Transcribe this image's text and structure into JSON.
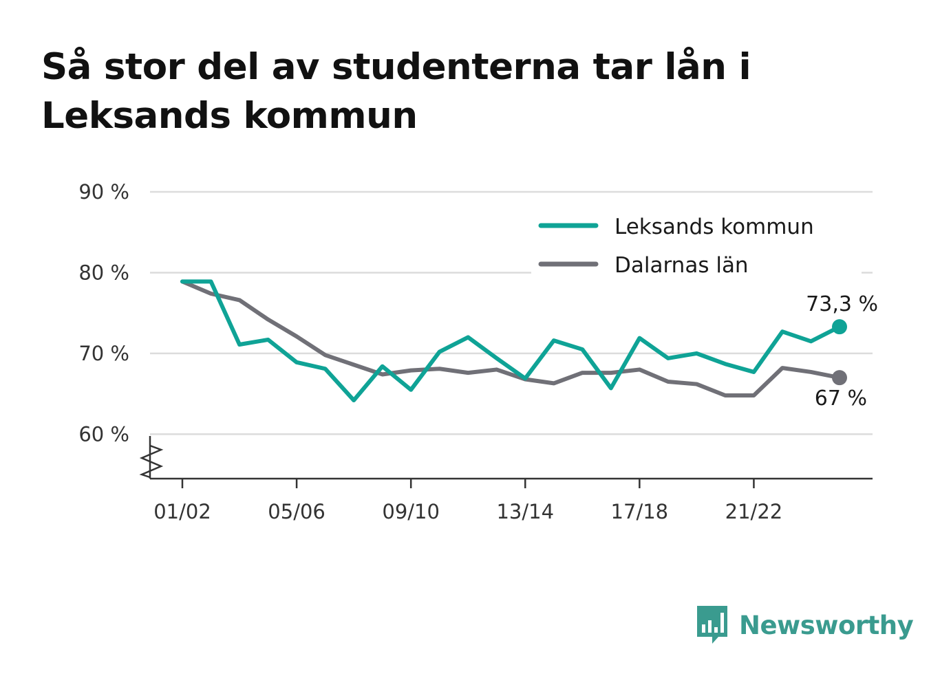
{
  "title": "Så stor del av studenterna tar lån i Leksands kommun",
  "brand": {
    "name": "Newsworthy",
    "color": "#3a9b8f",
    "icon": "bar-chart-speech-bubble-icon"
  },
  "chart_data": {
    "type": "line",
    "categories": [
      "01/02",
      "02/03",
      "03/04",
      "04/05",
      "05/06",
      "06/07",
      "07/08",
      "08/09",
      "09/10",
      "10/11",
      "11/12",
      "12/13",
      "13/14",
      "14/15",
      "15/16",
      "16/17",
      "17/18",
      "18/19",
      "19/20",
      "20/21",
      "21/22",
      "22/23",
      "23/24",
      "24/25"
    ],
    "tick_labels": [
      "01/02",
      "05/06",
      "09/10",
      "13/14",
      "17/18",
      "21/22"
    ],
    "y_ticks": [
      {
        "value": 60,
        "label": "60 %"
      },
      {
        "value": 70,
        "label": "70 %"
      },
      {
        "value": 80,
        "label": "80 %"
      },
      {
        "value": 90,
        "label": "90 %"
      }
    ],
    "ylim": [
      54.5,
      90
    ],
    "y_axis_break": true,
    "grid": true,
    "legend_position": "top-right",
    "series": [
      {
        "name": "Leksands kommun",
        "color": "#0fa396",
        "values": [
          78.9,
          78.9,
          71.1,
          71.7,
          68.9,
          68.1,
          64.2,
          68.4,
          65.5,
          70.2,
          72.0,
          69.4,
          66.9,
          71.6,
          70.5,
          65.7,
          71.9,
          69.4,
          70.0,
          68.7,
          67.7,
          72.7,
          71.5,
          73.3
        ],
        "end_label": "73,3 %"
      },
      {
        "name": "Dalarnas län",
        "color": "#707077",
        "values": [
          78.9,
          77.4,
          76.6,
          74.2,
          72.1,
          69.8,
          68.6,
          67.4,
          67.9,
          68.1,
          67.6,
          68.0,
          66.8,
          66.3,
          67.6,
          67.6,
          68.0,
          66.5,
          66.2,
          64.8,
          64.8,
          68.2,
          67.7,
          67.0
        ],
        "end_label": "67 %"
      }
    ]
  }
}
